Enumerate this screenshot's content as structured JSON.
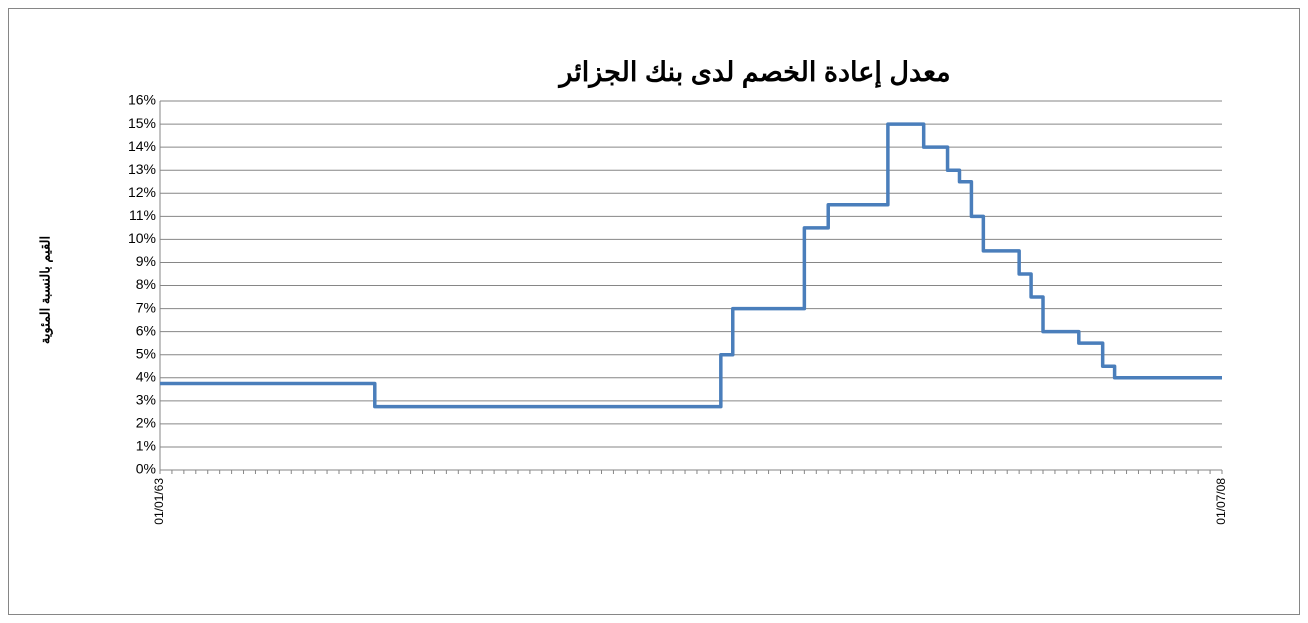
{
  "chart_data": {
    "type": "line",
    "step": true,
    "title": "معدل إعادة الخصم لدى بنك الجزائر",
    "y_label": "القيم بالنسبة المئوية",
    "categories": [
      "01/01/63",
      null,
      null,
      null,
      null,
      null,
      null,
      null,
      null,
      null,
      null,
      null,
      null,
      null,
      null,
      null,
      null,
      null,
      null,
      null,
      null,
      null,
      null,
      null,
      null,
      null,
      null,
      null,
      null,
      null,
      null,
      null,
      null,
      null,
      null,
      null,
      null,
      null,
      null,
      null,
      null,
      null,
      null,
      null,
      null,
      null,
      null,
      null,
      null,
      null,
      null,
      null,
      null,
      null,
      null,
      null,
      null,
      null,
      null,
      null,
      null,
      null,
      null,
      null,
      null,
      null,
      null,
      null,
      null,
      null,
      null,
      null,
      null,
      null,
      null,
      null,
      null,
      null,
      null,
      null,
      null,
      null,
      null,
      null,
      null,
      null,
      null,
      null,
      null,
      "01/07/08"
    ],
    "series": [
      {
        "name": null,
        "color": "#4a7ebb",
        "values": [
          3.75,
          3.75,
          3.75,
          3.75,
          3.75,
          3.75,
          3.75,
          3.75,
          3.75,
          3.75,
          3.75,
          3.75,
          3.75,
          3.75,
          3.75,
          3.75,
          3.75,
          3.75,
          2.75,
          2.75,
          2.75,
          2.75,
          2.75,
          2.75,
          2.75,
          2.75,
          2.75,
          2.75,
          2.75,
          2.75,
          2.75,
          2.75,
          2.75,
          2.75,
          2.75,
          2.75,
          2.75,
          2.75,
          2.75,
          2.75,
          2.75,
          2.75,
          2.75,
          2.75,
          2.75,
          2.75,
          2.75,
          5,
          7,
          7,
          7,
          7,
          7,
          7,
          10.5,
          10.5,
          11.5,
          11.5,
          11.5,
          11.5,
          11.5,
          15,
          15,
          15,
          14,
          14,
          13,
          12.5,
          11,
          9.5,
          9.5,
          9.5,
          8.5,
          7.5,
          6,
          6,
          6,
          5.5,
          5.5,
          4.5,
          4,
          4,
          4,
          4,
          4,
          4,
          4,
          4,
          4,
          4
        ]
      }
    ],
    "ylim": [
      0,
      16
    ],
    "yticks": [
      {
        "value": 0,
        "label": "0%"
      },
      {
        "value": 1,
        "label": "1%"
      },
      {
        "value": 2,
        "label": "2%"
      },
      {
        "value": 3,
        "label": "3%"
      },
      {
        "value": 4,
        "label": "4%"
      },
      {
        "value": 5,
        "label": "5%"
      },
      {
        "value": 6,
        "label": "6%"
      },
      {
        "value": 7,
        "label": "7%"
      },
      {
        "value": 8,
        "label": "8%"
      },
      {
        "value": 9,
        "label": "9%"
      },
      {
        "value": 10,
        "label": "10%"
      },
      {
        "value": 11,
        "label": "11%"
      },
      {
        "value": 12,
        "label": "12%"
      },
      {
        "value": 13,
        "label": "13%"
      },
      {
        "value": 14,
        "label": "14%"
      },
      {
        "value": 15,
        "label": "15%"
      },
      {
        "value": 16,
        "label": "16%"
      }
    ],
    "grid": true
  }
}
